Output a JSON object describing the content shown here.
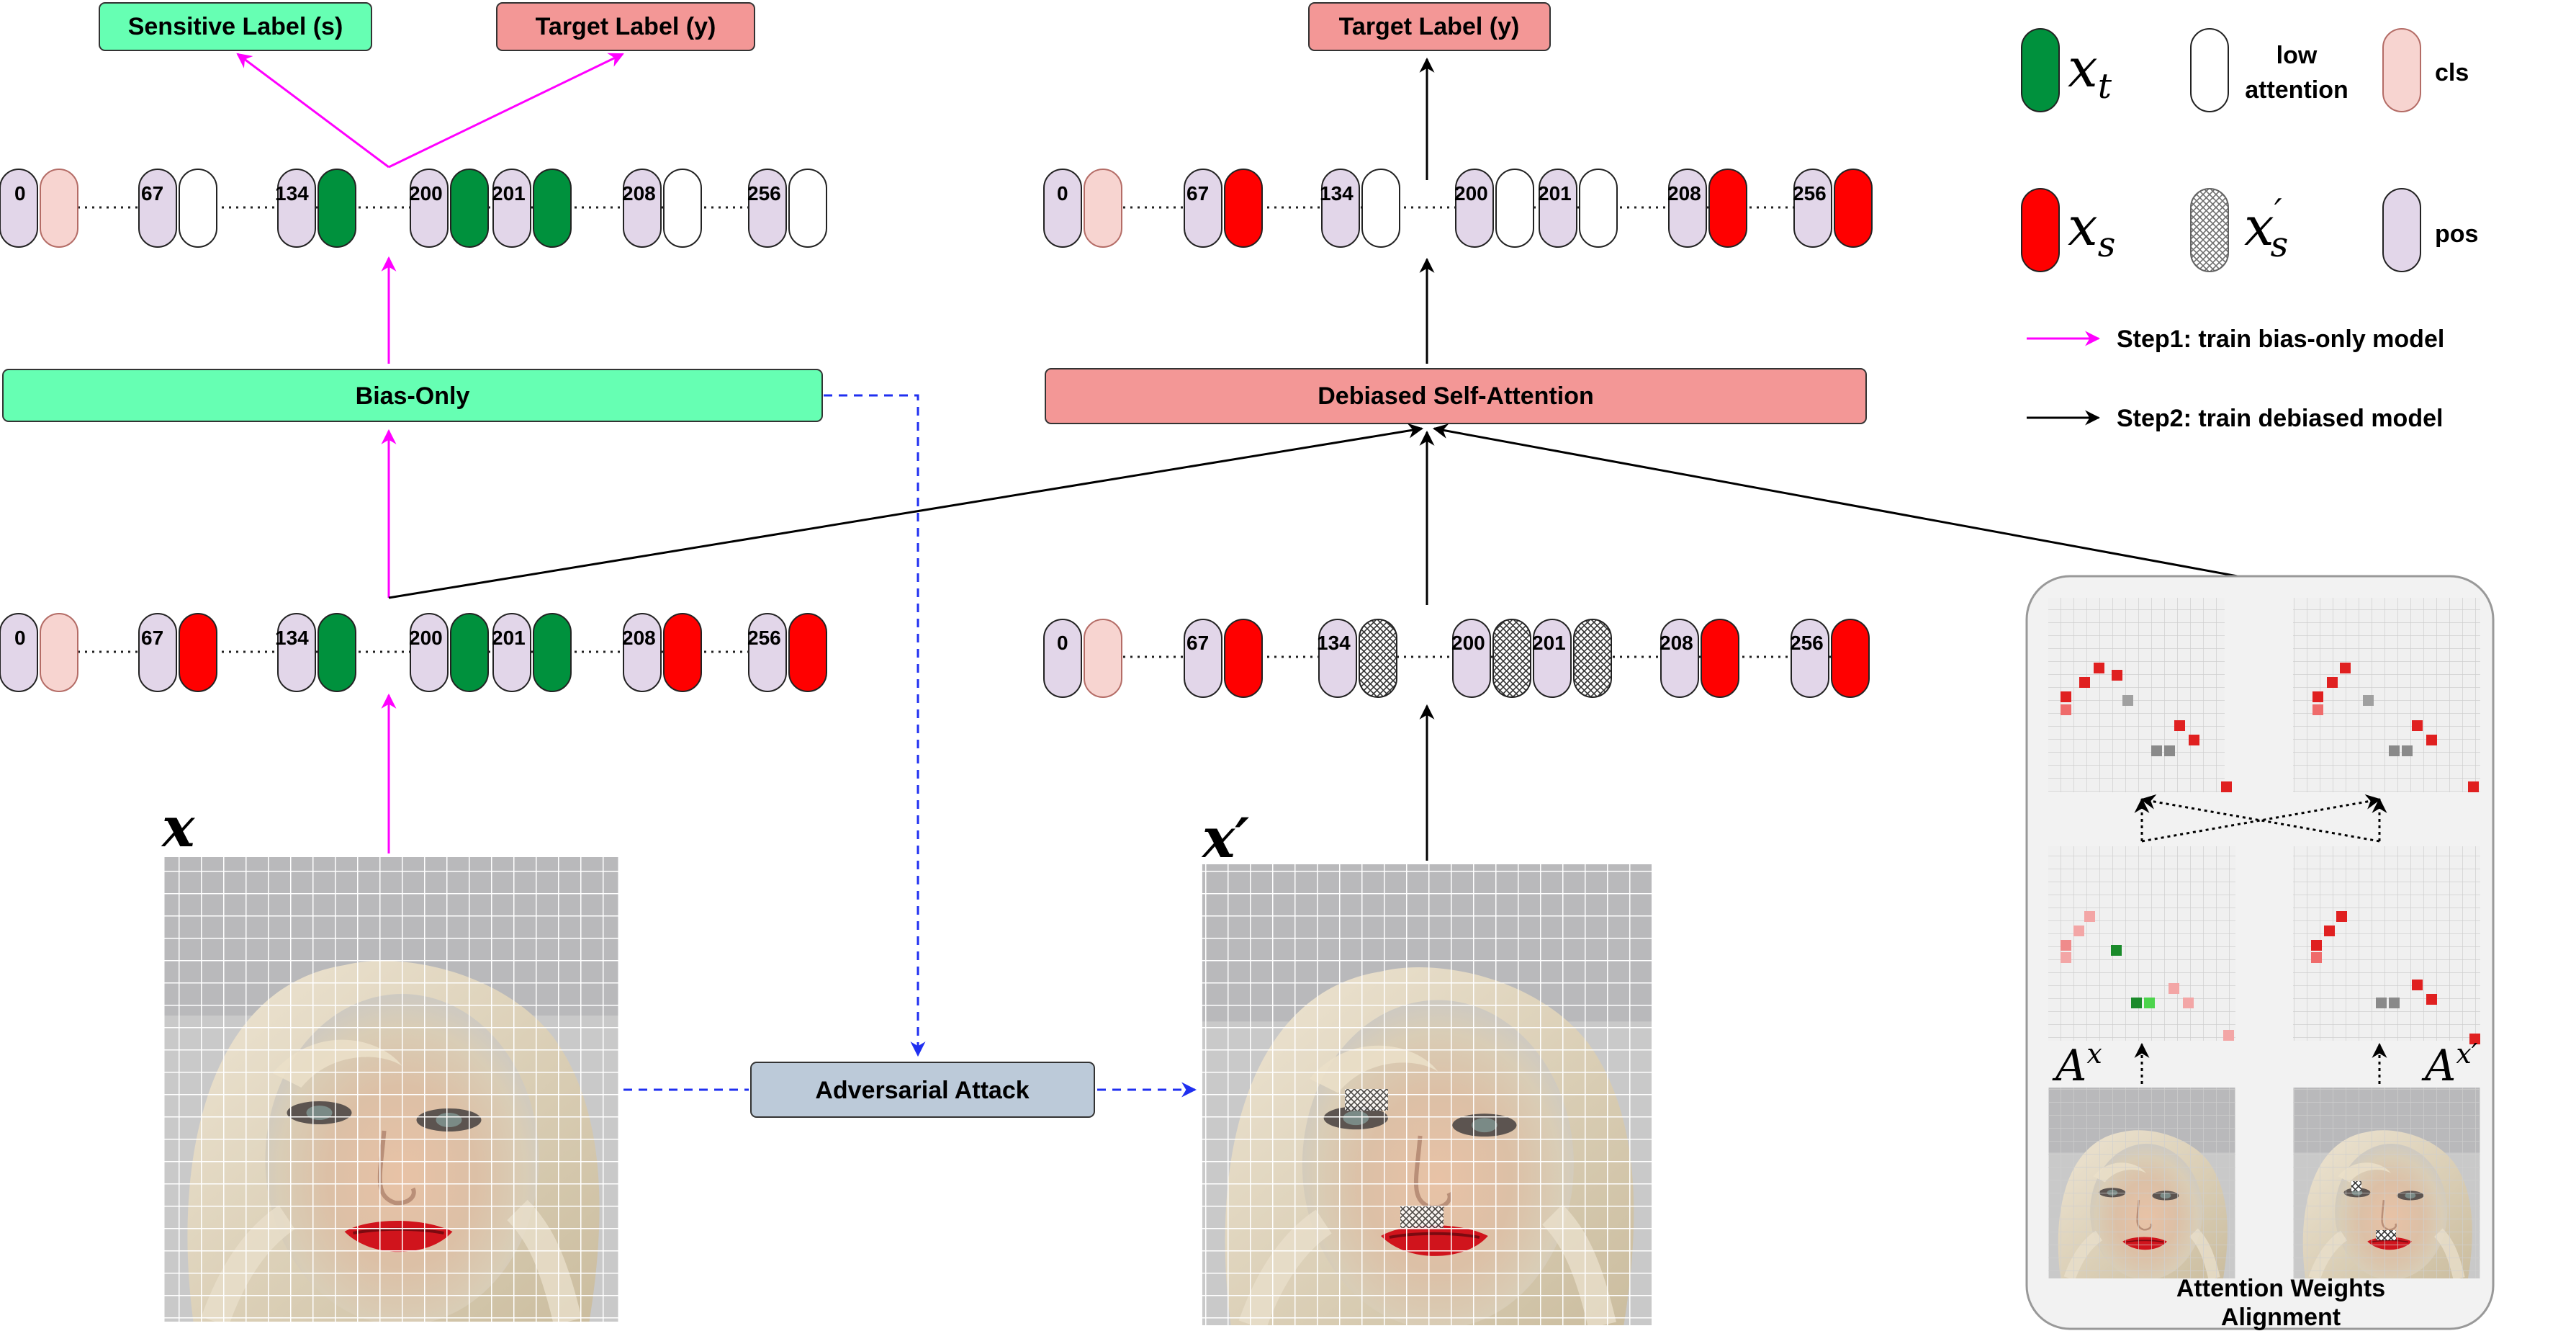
{
  "labels": {
    "sensitive_label": "Sensitive Label (s)",
    "target_label_left": "Target Label (y)",
    "target_label_right": "Target Label (y)",
    "bias_only": "Bias-Only",
    "debiased_self_attention": "Debiased Self-Attention",
    "adversarial_attack": "Adversarial Attack",
    "x_label": "x",
    "x_prime_label": "x′",
    "a_x_label": "A",
    "a_x_sup": "x",
    "a_xprime_label": "A",
    "a_xprime_sup": "x′",
    "alignment_title_line1": "Attention Weights",
    "alignment_title_line2": "Alignment"
  },
  "legend": {
    "xt_base": "x",
    "xt_sub": "t",
    "low_attention_line1": "low",
    "low_attention_line2": "attention",
    "cls": "cls",
    "xs_base": "x",
    "xs_sub": "s",
    "xs_prime_base": "x",
    "xs_prime_sub": "s",
    "xs_prime_mark": "′",
    "pos": "pos",
    "step1": "Step1: train bias-only model",
    "step2": "Step2: train debiased model"
  },
  "token_rows": {
    "left_top": [
      "0",
      "67",
      "134",
      "200",
      "201",
      "208",
      "256"
    ],
    "left_bottom": [
      "0",
      "67",
      "134",
      "200",
      "201",
      "208",
      "256"
    ],
    "right_top": [
      "0",
      "67",
      "134",
      "200",
      "201",
      "208",
      "256"
    ],
    "right_bottom": [
      "0",
      "67",
      "134",
      "200",
      "201",
      "208",
      "256"
    ]
  },
  "colors": {
    "green_token": "#00913d",
    "red_token": "#ff0000",
    "cls_token": "#f7d4d0",
    "pos_token": "#e2d6e9",
    "bias_only_fill": "#66ffb3",
    "debiased_fill": "#f39796",
    "sensitive_fill": "#66ffb3",
    "target_fill": "#f39796",
    "adversarial_fill": "#bccad9",
    "step1_arrow": "#ff00ff",
    "step2_arrow": "#000000",
    "dashed_arrow": "#1f2ff0"
  }
}
